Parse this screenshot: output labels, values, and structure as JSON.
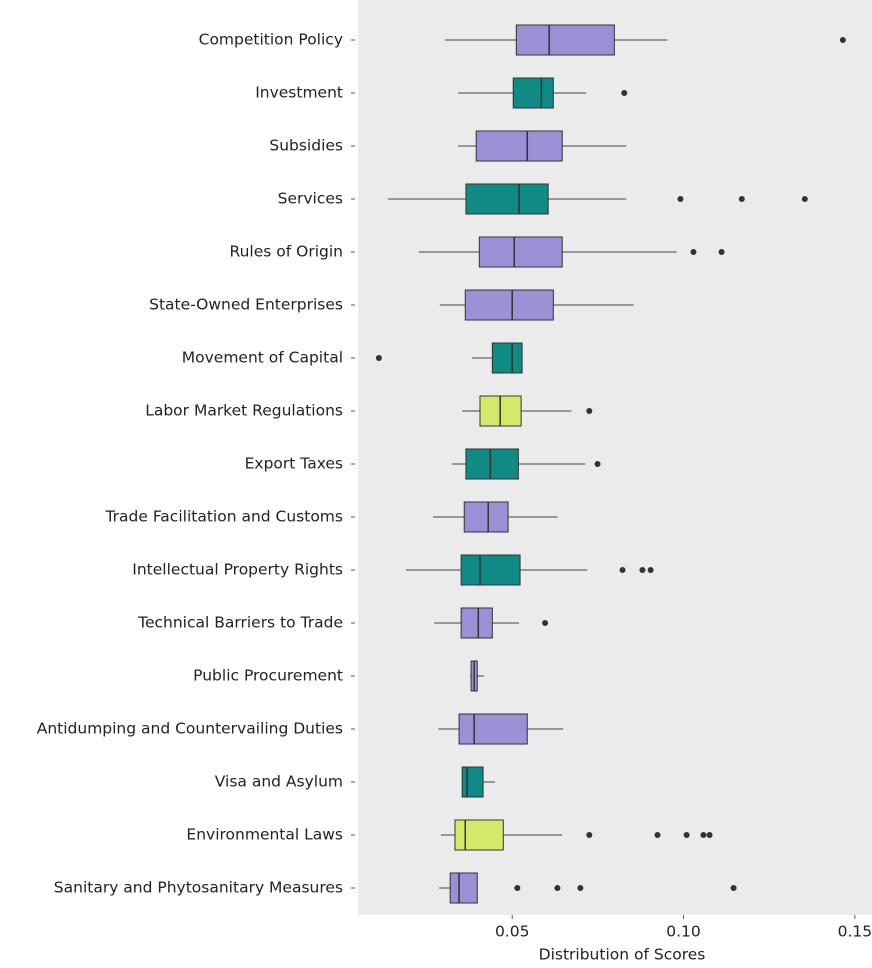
{
  "chart_data": {
    "type": "box",
    "x_label": "Distribution of Scores",
    "categories": [
      "Competition Policy",
      "Investment",
      "Subsidies",
      "Services",
      "Rules of Origin",
      "State-Owned Enterprises",
      "Movement of Capital",
      "Labor Market Regulations",
      "Export Taxes",
      "Trade Facilitation and Customs",
      "Intellectual Property Rights",
      "Technical Barriers to Trade",
      "Public Procurement",
      "Antidumping and Countervailing Duties",
      "Visa and Asylum",
      "Environmental Laws",
      "Sanitary and Phytosanitary Measures"
    ],
    "colors": [
      "#9b8fd6",
      "#0f8a85",
      "#9b8fd6",
      "#0f8a85",
      "#9b8fd6",
      "#9b8fd6",
      "#0f8a85",
      "#d4e86a",
      "#0f8a85",
      "#9b8fd6",
      "#0f8a85",
      "#9b8fd6",
      "#9b8fd6",
      "#9b8fd6",
      "#0f8a85",
      "#d4e86a",
      "#9b8fd6"
    ],
    "boxes": [
      {
        "low": 0.0304,
        "q1": 0.0512,
        "median": 0.0608,
        "q3": 0.0798,
        "high": 0.0953,
        "outliers": [
          0.1465
        ]
      },
      {
        "low": 0.0342,
        "q1": 0.0503,
        "median": 0.0585,
        "q3": 0.062,
        "high": 0.0716,
        "outliers": [
          0.0827
        ]
      },
      {
        "low": 0.0342,
        "q1": 0.0395,
        "median": 0.0544,
        "q3": 0.0646,
        "high": 0.0833,
        "outliers": []
      },
      {
        "low": 0.0137,
        "q1": 0.0365,
        "median": 0.052,
        "q3": 0.0605,
        "high": 0.0833,
        "outliers": [
          0.0991,
          0.117,
          0.1354
        ]
      },
      {
        "low": 0.0228,
        "q1": 0.0404,
        "median": 0.0506,
        "q3": 0.0646,
        "high": 0.098,
        "outliers": [
          0.1029,
          0.1111
        ]
      },
      {
        "low": 0.0289,
        "q1": 0.0363,
        "median": 0.05,
        "q3": 0.062,
        "high": 0.0854,
        "outliers": []
      },
      {
        "low": 0.0383,
        "q1": 0.0442,
        "median": 0.05,
        "q3": 0.0529,
        "high": 0.0529,
        "outliers": [
          0.0111
        ]
      },
      {
        "low": 0.0354,
        "q1": 0.0406,
        "median": 0.0465,
        "q3": 0.0526,
        "high": 0.0673,
        "outliers": [
          0.0725
        ]
      },
      {
        "low": 0.0325,
        "q1": 0.0365,
        "median": 0.0436,
        "q3": 0.0518,
        "high": 0.0713,
        "outliers": [
          0.0749
        ]
      },
      {
        "low": 0.0269,
        "q1": 0.036,
        "median": 0.043,
        "q3": 0.0488,
        "high": 0.0632,
        "outliers": []
      },
      {
        "low": 0.019,
        "q1": 0.0351,
        "median": 0.0406,
        "q3": 0.0523,
        "high": 0.0719,
        "outliers": [
          0.0822,
          0.088,
          0.0904
        ]
      },
      {
        "low": 0.0272,
        "q1": 0.0351,
        "median": 0.0401,
        "q3": 0.0442,
        "high": 0.052,
        "outliers": [
          0.0596
        ]
      },
      {
        "low": 0.0377,
        "q1": 0.038,
        "median": 0.0389,
        "q3": 0.0398,
        "high": 0.0418,
        "outliers": []
      },
      {
        "low": 0.0284,
        "q1": 0.0345,
        "median": 0.0389,
        "q3": 0.0544,
        "high": 0.0649,
        "outliers": []
      },
      {
        "low": 0.0354,
        "q1": 0.0354,
        "median": 0.0368,
        "q3": 0.0415,
        "high": 0.045,
        "outliers": []
      },
      {
        "low": 0.0292,
        "q1": 0.0333,
        "median": 0.0363,
        "q3": 0.0474,
        "high": 0.0646,
        "outliers": [
          0.0725,
          0.0924,
          0.1009,
          0.1058,
          0.1076
        ]
      },
      {
        "low": 0.0287,
        "q1": 0.0319,
        "median": 0.0345,
        "q3": 0.0398,
        "high": 0.0398,
        "outliers": [
          0.0515,
          0.0632,
          0.0699,
          0.1146
        ]
      }
    ],
    "xlim": [
      0.005,
      0.155
    ],
    "xticks": [
      0.05,
      {
        "value": 0.1,
        "label": "0.10"
      },
      0.15
    ]
  }
}
